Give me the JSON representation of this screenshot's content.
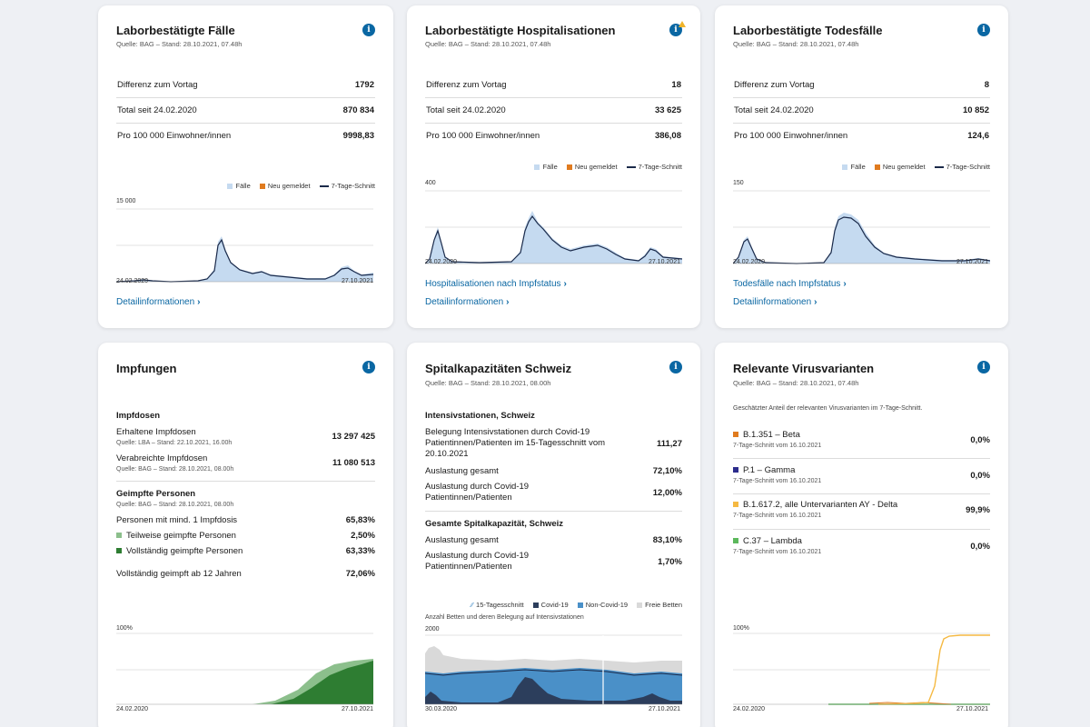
{
  "cards": {
    "faelle": {
      "title": "Laborbestätigte Fälle",
      "source": "Quelle: BAG – Stand: 28.10.2021, 07.48h",
      "rows": [
        {
          "label": "Differenz zum Vortag",
          "value": "1792"
        },
        {
          "label": "Total seit 24.02.2020",
          "value": "870 834"
        },
        {
          "label": "Pro 100 000 Einwohner/innen",
          "value": "9998,83"
        }
      ],
      "legend": {
        "cases": "Fälle",
        "new": "Neu gemeldet",
        "avg": "7-Tage-Schnitt"
      },
      "y_top": "15 000",
      "date_start": "24.02.2020",
      "date_end": "27.10.2021",
      "link_detail": "Detailinformationen"
    },
    "hosp": {
      "title": "Laborbestätigte Hospitalisationen",
      "source": "Quelle: BAG – Stand: 28.10.2021, 07.48h",
      "rows": [
        {
          "label": "Differenz zum Vortag",
          "value": "18"
        },
        {
          "label": "Total seit 24.02.2020",
          "value": "33 625"
        },
        {
          "label": "Pro 100 000 Einwohner/innen",
          "value": "386,08"
        }
      ],
      "legend": {
        "cases": "Fälle",
        "new": "Neu gemeldet",
        "avg": "7-Tage-Schnitt"
      },
      "y_top": "400",
      "date_start": "24.02.2020",
      "date_end": "27.10.2021",
      "link_vacc": "Hospitalisationen nach Impfstatus",
      "link_detail": "Detailinformationen"
    },
    "tod": {
      "title": "Laborbestätigte Todesfälle",
      "source": "Quelle: BAG – Stand: 28.10.2021, 07.48h",
      "rows": [
        {
          "label": "Differenz zum Vortag",
          "value": "8"
        },
        {
          "label": "Total seit 24.02.2020",
          "value": "10 852"
        },
        {
          "label": "Pro 100 000 Einwohner/innen",
          "value": "124,6"
        }
      ],
      "legend": {
        "cases": "Fälle",
        "new": "Neu gemeldet",
        "avg": "7-Tage-Schnitt"
      },
      "y_top": "150",
      "date_start": "24.02.2020",
      "date_end": "27.10.2021",
      "link_vacc": "Todesfälle nach Impfstatus",
      "link_detail": "Detailinformationen"
    },
    "impf": {
      "title": "Impfungen",
      "doses_head": "Impfdosen",
      "received_label": "Erhaltene Impfdosen",
      "received_src": "Quelle: LBA – Stand: 22.10.2021, 16.00h",
      "received_value": "13 297 425",
      "admin_label": "Verabreichte Impfdosen",
      "admin_src": "Quelle: BAG – Stand: 28.10.2021, 08.00h",
      "admin_value": "11 080 513",
      "persons_head": "Geimpfte Personen",
      "persons_src": "Quelle: BAG – Stand: 28.10.2021, 08.00h",
      "min1_label": "Personen mit mind. 1 Impfdosis",
      "min1_value": "65,83%",
      "partial_label": "Teilweise geimpfte Personen",
      "partial_value": "2,50%",
      "full_label": "Vollständig geimpfte Personen",
      "full_value": "63,33%",
      "age12_label": "Vollständig geimpft ab 12 Jahren",
      "age12_value": "72,06%",
      "y_top": "100%",
      "date_start": "24.02.2020",
      "date_end": "27.10.2021"
    },
    "spital": {
      "title": "Spitalkapazitäten Schweiz",
      "source": "Quelle: BAG – Stand: 28.10.2021, 08.00h",
      "icu_head": "Intensivstationen, Schweiz",
      "icu_covid_label": "Belegung Intensivstationen durch Covid-19 Patientinnen/Patienten im 15-Tagesschnitt vom 20.10.2021",
      "icu_covid_value": "111,27",
      "icu_total_label": "Auslastung gesamt",
      "icu_total_value": "72,10%",
      "icu_c19_label": "Auslastung durch Covid-19 Patientinnen/Patienten",
      "icu_c19_value": "12,00%",
      "total_head": "Gesamte Spitalkapazität, Schweiz",
      "tot_total_label": "Auslastung gesamt",
      "tot_total_value": "83,10%",
      "tot_c19_label": "Auslastung durch Covid-19 Patientinnen/Patienten",
      "tot_c19_value": "1,70%",
      "legend": {
        "avg": "15-Tagesschnitt",
        "covid": "Covid-19",
        "noncovid": "Non-Covid-19",
        "free": "Freie Betten"
      },
      "chart_caption": "Anzahl Betten und deren Belegung auf Intensivstationen",
      "y_top": "2000",
      "date_start": "30.03.2020",
      "date_end": "27.10.2021"
    },
    "varianten": {
      "title": "Relevante Virusvarianten",
      "source": "Quelle: BAG – Stand: 28.10.2021, 07.48h",
      "note": "Geschätzter Anteil der relevanten Virusvarianten im 7-Tage-Schnitt.",
      "items": [
        {
          "name": "B.1.351 – Beta",
          "sub": "7-Tage-Schnitt vom 16.10.2021",
          "value": "0,0%",
          "color": "#e07b1f"
        },
        {
          "name": "P.1 – Gamma",
          "sub": "7-Tage-Schnitt vom 16.10.2021",
          "value": "0,0%",
          "color": "#2c2c8c"
        },
        {
          "name": "B.1.617.2, alle Untervarianten AY - Delta",
          "sub": "7-Tage-Schnitt vom 16.10.2021",
          "value": "99,9%",
          "color": "#f5b942"
        },
        {
          "name": "C.37 – Lambda",
          "sub": "7-Tage-Schnitt vom 16.10.2021",
          "value": "0,0%",
          "color": "#5cb85c"
        }
      ],
      "y_top": "100%",
      "date_start": "24.02.2020",
      "date_end": "27.10.2021"
    }
  },
  "colors": {
    "accent": "#0a67a3",
    "cases_fill": "#c5daf0",
    "new_reported": "#e07b1f",
    "avg_line": "#1b2a4a",
    "vacc_partial": "#8cbf8c",
    "vacc_full": "#2e7d32",
    "icu_covid": "#2c3e5c",
    "icu_noncovid": "#4a90c8",
    "icu_free": "#d9d9d9"
  }
}
